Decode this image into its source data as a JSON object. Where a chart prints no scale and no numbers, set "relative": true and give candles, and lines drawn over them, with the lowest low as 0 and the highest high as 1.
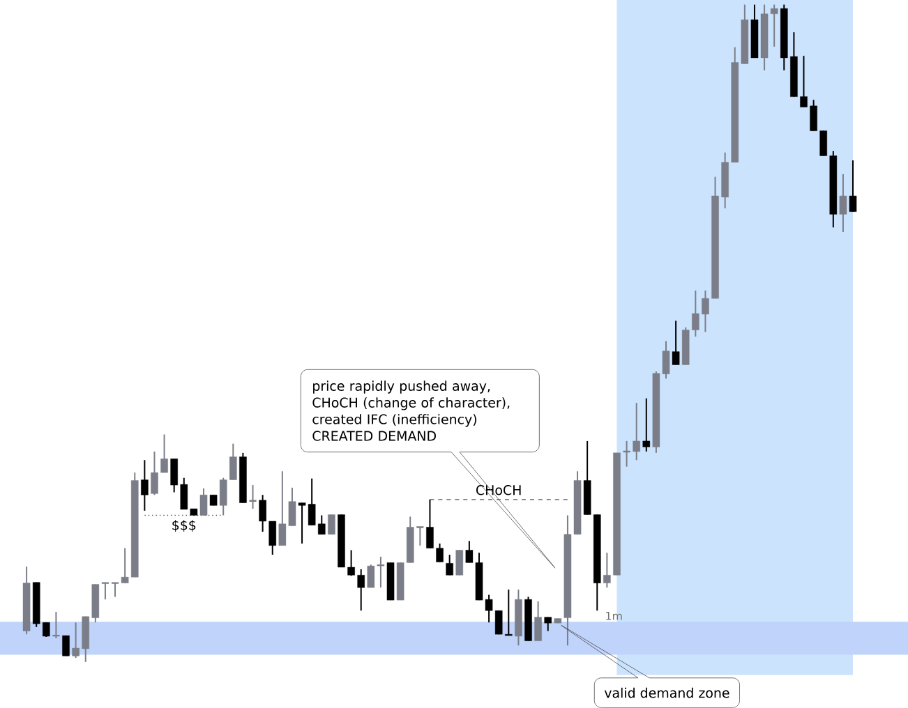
{
  "chart_data": {
    "type": "candlestick",
    "relative": true,
    "categories": [
      null,
      null,
      null,
      null,
      null,
      null,
      null,
      null,
      null,
      null,
      null,
      null,
      null,
      null,
      null,
      null,
      null,
      null,
      null,
      null,
      null,
      null,
      null,
      null,
      null,
      null,
      null,
      null,
      null,
      null,
      null,
      null,
      null,
      null,
      null,
      null,
      null,
      null,
      null,
      null,
      null,
      null,
      null,
      null,
      null,
      null,
      null,
      null,
      null,
      null,
      null,
      null,
      null,
      null,
      null,
      null,
      null,
      null,
      null,
      null,
      null,
      null,
      null,
      null,
      null,
      null,
      null,
      null,
      null,
      null,
      null,
      null,
      null,
      null,
      null,
      null,
      null,
      null,
      null,
      null,
      null,
      null,
      null,
      null,
      null
    ],
    "ohlc": [
      [
        0.047,
        0.145,
        0.042,
        0.12
      ],
      [
        0.121,
        0.121,
        0.053,
        0.058
      ],
      [
        0.06,
        0.06,
        0.038,
        0.039
      ],
      [
        0.04,
        0.076,
        0.036,
        0.04
      ],
      [
        0.04,
        0.04,
        0.009,
        0.009
      ],
      [
        0.009,
        0.06,
        0.006,
        0.021
      ],
      [
        0.02,
        0.069,
        0.0,
        0.069
      ],
      [
        0.067,
        0.118,
        0.06,
        0.118
      ],
      [
        0.12,
        0.12,
        0.095,
        0.12
      ],
      [
        0.12,
        0.12,
        0.099,
        0.12
      ],
      [
        0.12,
        0.173,
        0.12,
        0.129
      ],
      [
        0.129,
        0.288,
        0.129,
        0.276
      ],
      [
        0.277,
        0.307,
        0.23,
        0.254
      ],
      [
        0.256,
        0.32,
        0.254,
        0.288
      ],
      [
        0.288,
        0.346,
        0.288,
        0.309
      ],
      [
        0.309,
        0.309,
        0.258,
        0.269
      ],
      [
        0.27,
        0.28,
        0.232,
        0.232
      ],
      [
        0.233,
        0.233,
        0.223,
        0.223
      ],
      [
        0.223,
        0.264,
        0.223,
        0.254
      ],
      [
        0.254,
        0.254,
        0.238,
        0.238
      ],
      [
        0.238,
        0.28,
        0.223,
        0.277
      ],
      [
        0.277,
        0.332,
        0.277,
        0.312
      ],
      [
        0.312,
        0.318,
        0.242,
        0.242
      ],
      [
        0.245,
        0.269,
        0.233,
        0.245
      ],
      [
        0.246,
        0.254,
        0.198,
        0.214
      ],
      [
        0.214,
        0.214,
        0.163,
        0.177
      ],
      [
        0.177,
        0.29,
        0.177,
        0.21
      ],
      [
        0.207,
        0.265,
        0.207,
        0.244
      ],
      [
        0.242,
        0.242,
        0.18,
        0.238
      ],
      [
        0.24,
        0.279,
        0.208,
        0.208
      ],
      [
        0.21,
        0.223,
        0.194,
        0.194
      ],
      [
        0.194,
        0.224,
        0.194,
        0.224
      ],
      [
        0.224,
        0.224,
        0.144,
        0.144
      ],
      [
        0.144,
        0.17,
        0.131,
        0.132
      ],
      [
        0.132,
        0.141,
        0.078,
        0.113
      ],
      [
        0.113,
        0.148,
        0.113,
        0.146
      ],
      [
        0.146,
        0.16,
        0.113,
        0.148
      ],
      [
        0.151,
        0.151,
        0.094,
        0.094
      ],
      [
        0.094,
        0.151,
        0.094,
        0.151
      ],
      [
        0.151,
        0.221,
        0.151,
        0.205
      ],
      [
        0.205,
        0.205,
        0.177,
        0.205
      ],
      [
        0.205,
        0.247,
        0.173,
        0.173
      ],
      [
        0.173,
        0.18,
        0.152,
        0.152
      ],
      [
        0.15,
        0.163,
        0.132,
        0.132
      ],
      [
        0.132,
        0.17,
        0.132,
        0.17
      ],
      [
        0.17,
        0.184,
        0.151,
        0.151
      ],
      [
        0.151,
        0.166,
        0.094,
        0.094
      ],
      [
        0.095,
        0.102,
        0.06,
        0.078
      ],
      [
        0.078,
        0.078,
        0.042,
        0.042
      ],
      [
        0.042,
        0.11,
        0.04,
        0.04
      ],
      [
        0.039,
        0.11,
        0.025,
        0.095
      ],
      [
        0.095,
        0.099,
        0.032,
        0.032
      ],
      [
        0.032,
        0.092,
        0.032,
        0.068
      ],
      [
        0.068,
        0.068,
        0.047,
        0.059
      ],
      [
        0.059,
        0.066,
        0.059,
        0.066
      ],
      [
        0.067,
        0.223,
        0.025,
        0.194
      ],
      [
        0.194,
        0.29,
        0.194,
        0.276
      ],
      [
        0.276,
        0.336,
        0.224,
        0.224
      ],
      [
        0.224,
        0.224,
        0.078,
        0.12
      ],
      [
        0.12,
        0.166,
        0.113,
        0.132
      ],
      [
        0.132,
        0.318,
        0.132,
        0.318
      ],
      [
        0.32,
        0.336,
        0.297,
        0.32
      ],
      [
        0.32,
        0.394,
        0.307,
        0.336
      ],
      [
        0.336,
        0.401,
        0.32,
        0.327
      ],
      [
        0.327,
        0.442,
        0.318,
        0.439
      ],
      [
        0.438,
        0.488,
        0.431,
        0.473
      ],
      [
        0.472,
        0.519,
        0.452,
        0.452
      ],
      [
        0.452,
        0.509,
        0.452,
        0.505
      ],
      [
        0.505,
        0.565,
        0.495,
        0.53
      ],
      [
        0.529,
        0.565,
        0.502,
        0.553
      ],
      [
        0.553,
        0.738,
        0.553,
        0.709
      ],
      [
        0.707,
        0.775,
        0.69,
        0.76
      ],
      [
        0.76,
        0.935,
        0.76,
        0.912
      ],
      [
        0.91,
        1.0,
        0.91,
        0.977
      ],
      [
        0.977,
        1.0,
        0.919,
        0.919
      ],
      [
        0.919,
        1.0,
        0.9,
        0.986
      ],
      [
        0.986,
        1.0,
        0.936,
        0.994
      ],
      [
        0.994,
        1.0,
        0.9,
        0.919
      ],
      [
        0.921,
        0.958,
        0.86,
        0.86
      ],
      [
        0.86,
        0.922,
        0.844,
        0.844
      ],
      [
        0.846,
        0.855,
        0.808,
        0.808
      ],
      [
        0.808,
        0.808,
        0.77,
        0.77
      ],
      [
        0.77,
        0.777,
        0.661,
        0.681
      ],
      [
        0.681,
        0.742,
        0.654,
        0.709
      ],
      [
        0.709,
        0.763,
        0.685,
        0.685
      ]
    ],
    "colors": [
      "#7b7e88",
      "#000000",
      "#000000",
      "#7b7e88",
      "#000000",
      "#7b7e88",
      "#7b7e88",
      "#7b7e88",
      "#7b7e88",
      "#7b7e88",
      "#7b7e88",
      "#7b7e88",
      "#000000",
      "#7b7e88",
      "#7b7e88",
      "#000000",
      "#000000",
      "#000000",
      "#7b7e88",
      "#000000",
      "#7b7e88",
      "#7b7e88",
      "#000000",
      "#7b7e88",
      "#000000",
      "#000000",
      "#7b7e88",
      "#7b7e88",
      "#000000",
      "#000000",
      "#000000",
      "#7b7e88",
      "#000000",
      "#000000",
      "#000000",
      "#7b7e88",
      "#7b7e88",
      "#000000",
      "#7b7e88",
      "#7b7e88",
      "#7b7e88",
      "#000000",
      "#000000",
      "#000000",
      "#7b7e88",
      "#000000",
      "#000000",
      "#000000",
      "#000000",
      "#000000",
      "#7b7e88",
      "#000000",
      "#7b7e88",
      "#000000",
      "#7b7e88",
      "#7b7e88",
      "#7b7e88",
      "#000000",
      "#000000",
      "#7b7e88",
      "#7b7e88",
      "#7b7e88",
      "#7b7e88",
      "#000000",
      "#7b7e88",
      "#7b7e88",
      "#000000",
      "#7b7e88",
      "#7b7e88",
      "#7b7e88",
      "#7b7e88",
      "#7b7e88",
      "#7b7e88",
      "#7b7e88",
      "#000000",
      "#7b7e88",
      "#7b7e88",
      "#000000",
      "#000000",
      "#000000",
      "#000000",
      "#000000",
      "#000000",
      "#7b7e88",
      "#000000"
    ],
    "series": [
      {
        "name": "CHoCH",
        "type": "line",
        "color": "#555555",
        "line_style": "dashed",
        "values": [
          null,
          null,
          null,
          null,
          null,
          null,
          null,
          null,
          null,
          null,
          null,
          null,
          null,
          null,
          null,
          null,
          null,
          null,
          null,
          null,
          null,
          null,
          null,
          null,
          null,
          null,
          null,
          null,
          null,
          null,
          null,
          null,
          null,
          null,
          null,
          null,
          null,
          null,
          null,
          null,
          null,
          0.247,
          0.247,
          0.247,
          0.247,
          0.247,
          0.247,
          0.247,
          0.247,
          0.247,
          0.247,
          0.247,
          0.247,
          0.247,
          0.247,
          0.247,
          null,
          null,
          null,
          null,
          null,
          null,
          null,
          null,
          null,
          null,
          null,
          null,
          null,
          null,
          null,
          null,
          null,
          null,
          null,
          null,
          null,
          null,
          null,
          null,
          null,
          null,
          null,
          null,
          null
        ]
      },
      {
        "name": "$$$",
        "type": "line",
        "color": "#555555",
        "line_style": "dotted",
        "values": [
          null,
          null,
          null,
          null,
          null,
          null,
          null,
          null,
          null,
          null,
          null,
          null,
          0.223,
          0.223,
          0.223,
          0.223,
          0.223,
          0.223,
          0.223,
          0.223,
          0.223,
          null,
          null,
          null,
          null,
          null,
          null,
          null,
          null,
          null,
          null,
          null,
          null,
          null,
          null,
          null,
          null,
          null,
          null,
          null,
          null,
          null,
          null,
          null,
          null,
          null,
          null,
          null,
          null,
          null,
          null,
          null,
          null,
          null,
          null,
          null,
          null,
          null,
          null,
          null,
          null,
          null,
          null,
          null,
          null,
          null,
          null,
          null,
          null,
          null,
          null,
          null,
          null,
          null,
          null,
          null,
          null,
          null,
          null,
          null,
          null,
          null,
          null,
          null,
          null
        ]
      }
    ],
    "bands": [
      {
        "axis": "y",
        "from": 0.011,
        "to": 0.061,
        "color": "#bfd3fb"
      }
    ],
    "annotations": [
      "price rapidly pushed away, CHoCH (change of character), created IFC (inefficiency) CREATED DEMAND",
      "valid demand zone",
      "1m"
    ]
  }
}
